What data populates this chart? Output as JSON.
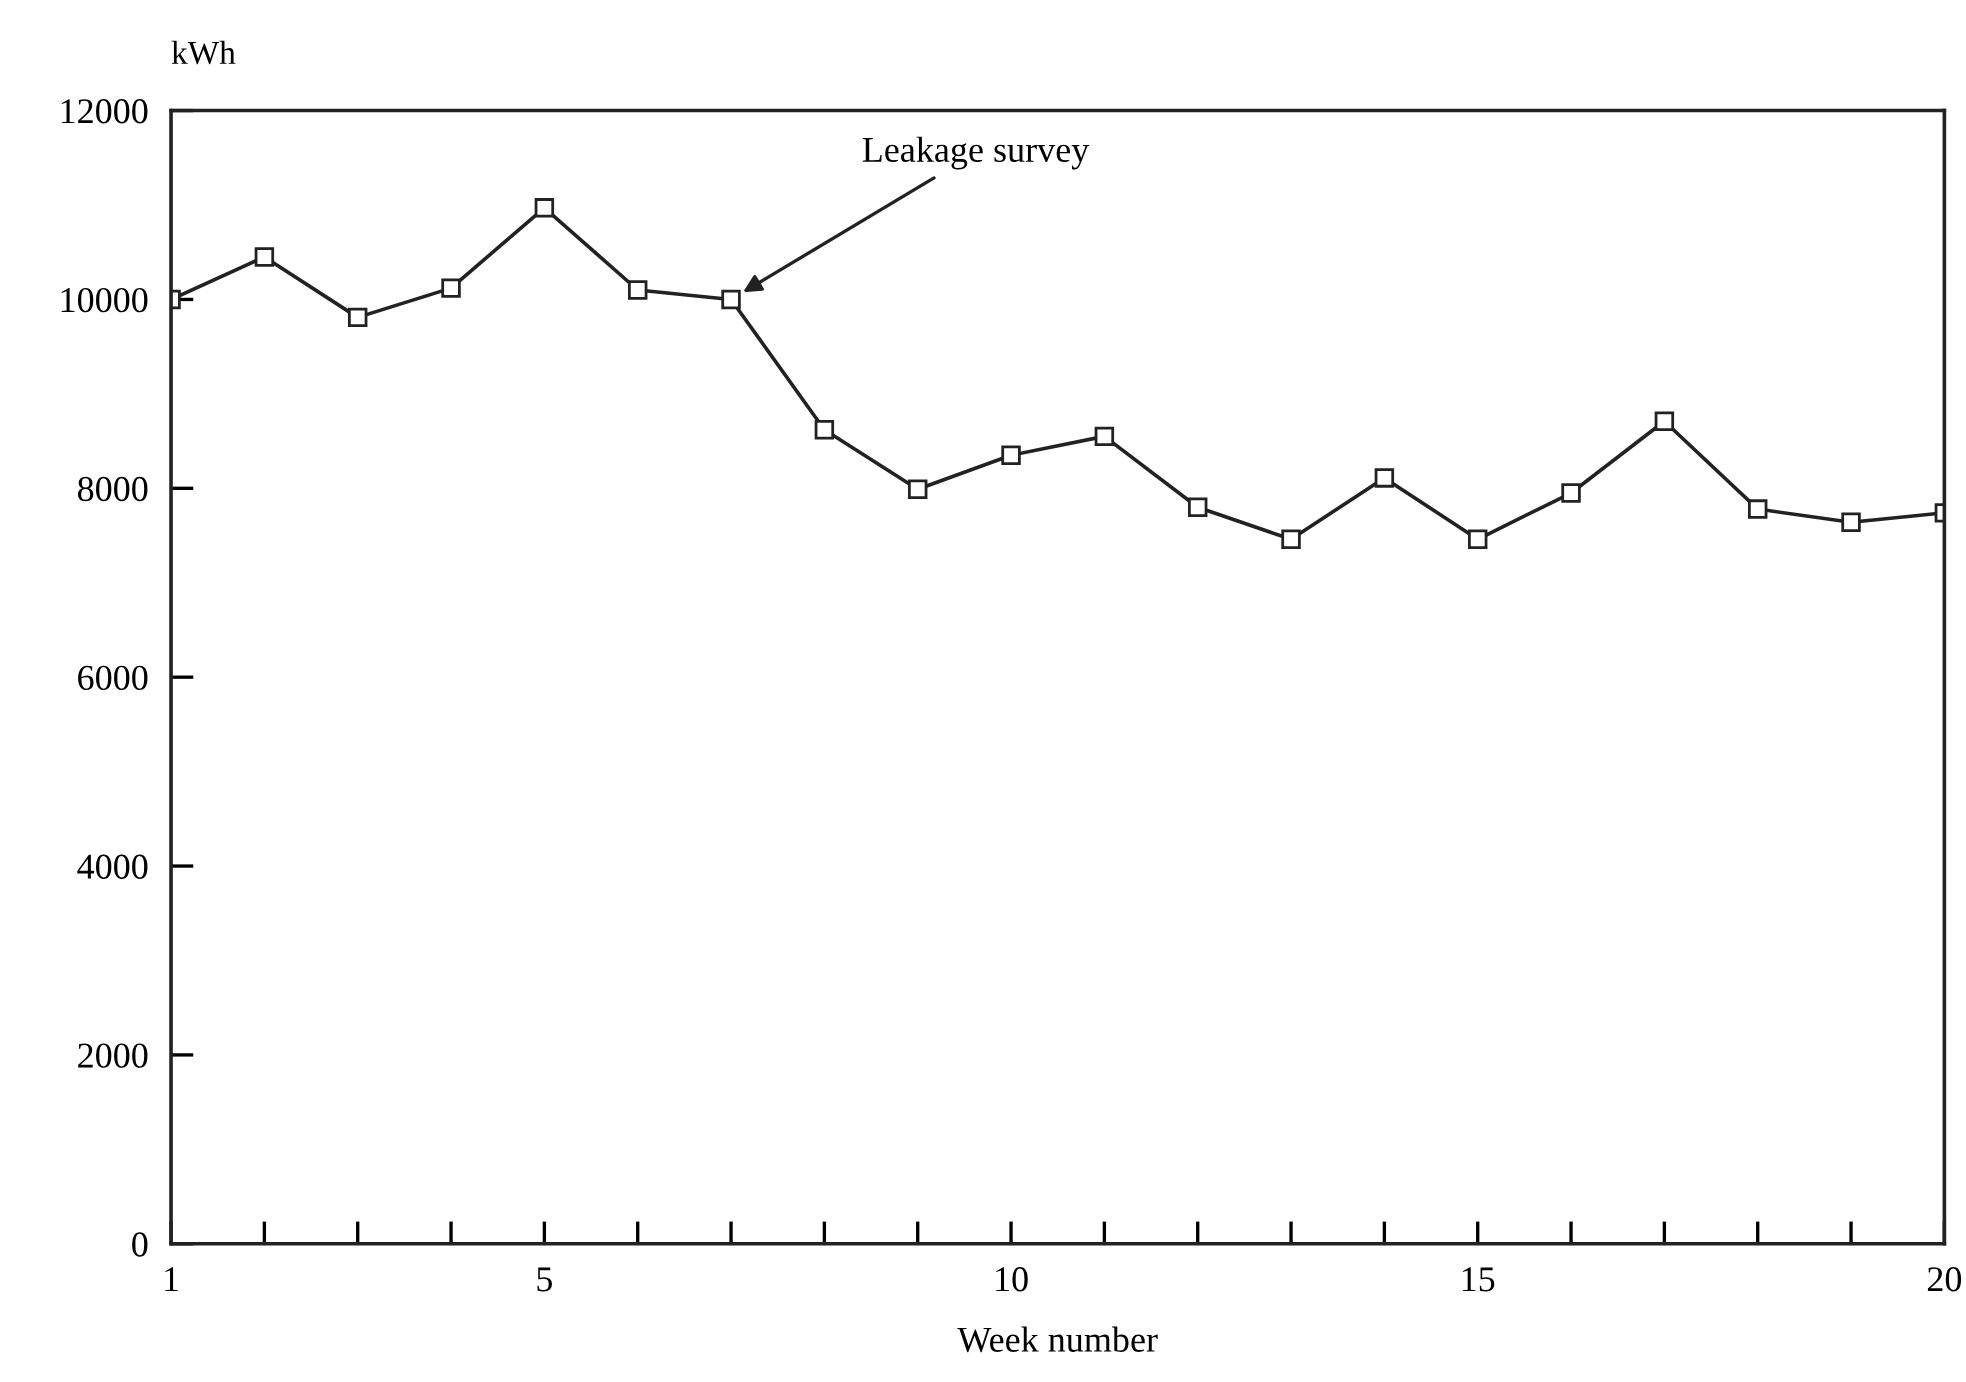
{
  "chart_data": {
    "type": "line",
    "x": [
      1,
      2,
      3,
      4,
      5,
      6,
      7,
      8,
      9,
      10,
      11,
      12,
      13,
      14,
      15,
      16,
      17,
      18,
      19,
      20
    ],
    "series": [
      {
        "color": "#222222",
        "values": [
          10000,
          10450,
          9810,
          10120,
          10970,
          10100,
          10000,
          8620,
          7990,
          8350,
          8550,
          7800,
          7460,
          8110,
          7460,
          7950,
          8710,
          7780,
          7640,
          7740
        ]
      }
    ],
    "xlim": [
      1,
      20
    ],
    "xticks": [
      1,
      {
        "value": 2,
        "label": null
      },
      {
        "value": 3,
        "label": null
      },
      {
        "value": 4,
        "label": null
      },
      5,
      {
        "value": 6,
        "label": null
      },
      {
        "value": 7,
        "label": null
      },
      {
        "value": 8,
        "label": null
      },
      {
        "value": 9,
        "label": null
      },
      10,
      {
        "value": 11,
        "label": null
      },
      {
        "value": 12,
        "label": null
      },
      {
        "value": 13,
        "label": null
      },
      {
        "value": 14,
        "label": null
      },
      15,
      {
        "value": 16,
        "label": null
      },
      {
        "value": 17,
        "label": null
      },
      {
        "value": 18,
        "label": null
      },
      {
        "value": 19,
        "label": null
      },
      20
    ],
    "ylim": [
      0,
      12000
    ],
    "yticks": [
      0,
      2000,
      4000,
      6000,
      8000,
      10000,
      12000
    ],
    "xlabel": "Week number",
    "ylabel": "kWh",
    "annotations": [
      {
        "text": "Leakage survey",
        "x": 7,
        "y": 10000
      }
    ],
    "marker": "square",
    "line_style": "solid",
    "grid": false,
    "legend": false
  }
}
